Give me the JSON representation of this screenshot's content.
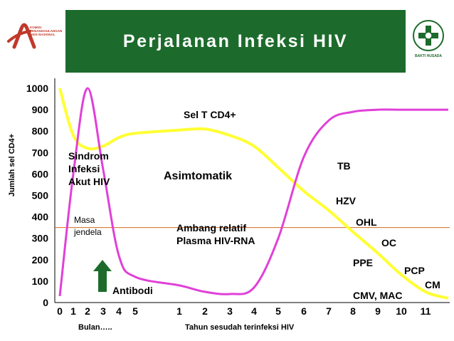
{
  "header": {
    "title": "Perjalanan Infeksi HIV",
    "left_logo_text": "KOMISI PENANGGULANGAN AIDS NASIONAL",
    "right_logo_text": "BAKTI HUSADA"
  },
  "colors": {
    "header_bg": "#1d6b2c",
    "cd4_line": "#ffff33",
    "viral_line": "#e040d8",
    "threshold_line": "#d2691e",
    "arrow": "#1d6b2c"
  },
  "chart_data": {
    "type": "line",
    "ylabel": "Jumlah sel CD4+",
    "ylim": [
      0,
      1000
    ],
    "yticks": [
      "0",
      "100",
      "200",
      "300",
      "400",
      "500",
      "600",
      "700",
      "800",
      "900",
      "1000"
    ],
    "x_months_ticks": [
      "0",
      "1",
      "2",
      "3",
      "4",
      "5"
    ],
    "x_years_ticks": [
      "1",
      "2",
      "3",
      "4",
      "5",
      "6",
      "7",
      "8",
      "9",
      "10",
      "11"
    ],
    "xlabel_months": "Bulan…..",
    "xlabel_years": "Tahun sesudah terinfeksi HIV",
    "threshold": 350,
    "series": [
      {
        "name": "Sel T CD4+",
        "points": [
          {
            "x": "0",
            "y": 1000
          },
          {
            "x": "1",
            "y": 780
          },
          {
            "x": "2",
            "y": 720
          },
          {
            "x": "3",
            "y": 730
          },
          {
            "x": "4",
            "y": 770
          },
          {
            "x": "5",
            "y": 790
          },
          {
            "x": "y1",
            "y": 805
          },
          {
            "x": "y2",
            "y": 810
          },
          {
            "x": "y3",
            "y": 780
          },
          {
            "x": "y4",
            "y": 730
          },
          {
            "x": "y5",
            "y": 630
          },
          {
            "x": "y6",
            "y": 520
          },
          {
            "x": "y7",
            "y": 430
          },
          {
            "x": "y8",
            "y": 330
          },
          {
            "x": "y9",
            "y": 230
          },
          {
            "x": "y10",
            "y": 130
          },
          {
            "x": "y11",
            "y": 50
          },
          {
            "x": "end",
            "y": 20
          }
        ]
      },
      {
        "name": "",
        "points": [
          {
            "x": "0",
            "y": 30
          },
          {
            "x": "1",
            "y": 600
          },
          {
            "x": "2",
            "y": 1000
          },
          {
            "x": "3",
            "y": 620
          },
          {
            "x": "4",
            "y": 220
          },
          {
            "x": "5",
            "y": 120
          },
          {
            "x": "y1",
            "y": 80
          },
          {
            "x": "y2",
            "y": 50
          },
          {
            "x": "y3",
            "y": 40
          },
          {
            "x": "y4",
            "y": 70
          },
          {
            "x": "y5",
            "y": 300
          },
          {
            "x": "y6",
            "y": 680
          },
          {
            "x": "y7",
            "y": 850
          },
          {
            "x": "y8",
            "y": 890
          },
          {
            "x": "y9",
            "y": 900
          },
          {
            "x": "y10",
            "y": 900
          },
          {
            "x": "y11",
            "y": 900
          },
          {
            "x": "end",
            "y": 900
          }
        ]
      }
    ],
    "annotations": {
      "sindrom": [
        "Sindrom",
        "Infeksi",
        "Akut HIV"
      ],
      "masa": [
        "Masa",
        "jendela"
      ],
      "asimtomatik": "Asimtomatik",
      "ambang": [
        "Ambang relatif",
        "Plasma HIV-RNA"
      ],
      "antibodi": "Antibodi",
      "cd4_label": "Sel T CD4+",
      "tb": "TB",
      "hzv": "HZV",
      "ohl": "OHL",
      "oc": "OC",
      "ppe": "PPE",
      "pcp": "PCP",
      "cm": "CM",
      "cmv": "CMV, MAC"
    }
  }
}
